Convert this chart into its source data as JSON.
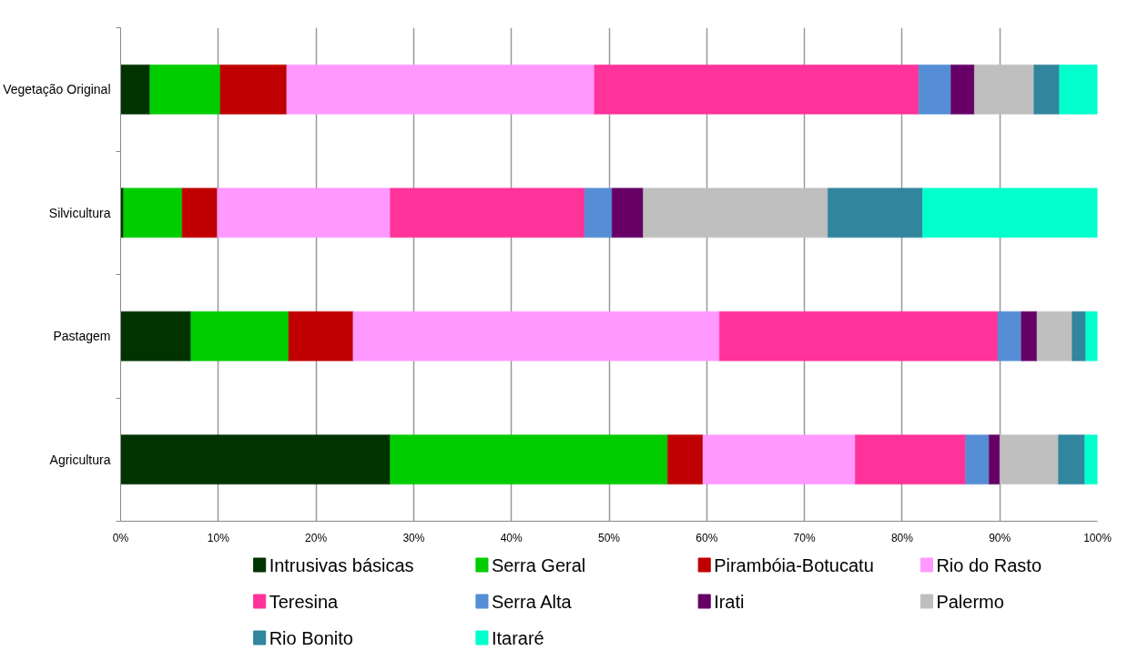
{
  "chart_data": {
    "type": "bar",
    "orientation": "horizontal",
    "stacked": true,
    "categories": [
      "Vegetação Original",
      "Silvicultura",
      "Pastagem",
      "Agricultura"
    ],
    "xlim": [
      0,
      100
    ],
    "xticks": [
      {
        "value": 0,
        "label": "0%"
      },
      {
        "value": 10,
        "label": "10%"
      },
      {
        "value": 20,
        "label": "20%"
      },
      {
        "value": 30,
        "label": "30%"
      },
      {
        "value": 40,
        "label": "40%"
      },
      {
        "value": 50,
        "label": "50%"
      },
      {
        "value": 60,
        "label": "60%"
      },
      {
        "value": 70,
        "label": "70%"
      },
      {
        "value": 80,
        "label": "80%"
      },
      {
        "value": 90,
        "label": "90%"
      },
      {
        "value": 100,
        "label": "100%"
      }
    ],
    "grid": "x",
    "legend": "bottom",
    "series": [
      {
        "name": "Intrusivas básicas",
        "color": "#003300",
        "values": [
          3.0,
          0.3,
          7.2,
          27.6
        ]
      },
      {
        "name": "Serra Geral",
        "color": "#00cc00",
        "values": [
          7.2,
          6.0,
          10.0,
          28.4
        ]
      },
      {
        "name": "Pirambóia-Botucatu",
        "color": "#c00000",
        "values": [
          6.8,
          3.6,
          6.6,
          3.6
        ]
      },
      {
        "name": "Rio do Rasto",
        "color": "#ff99ff",
        "values": [
          31.5,
          17.7,
          37.5,
          15.6
        ]
      },
      {
        "name": "Teresina",
        "color": "#ff3399",
        "values": [
          33.2,
          19.9,
          28.5,
          11.3
        ]
      },
      {
        "name": "Serra Alta",
        "color": "#558ed5",
        "values": [
          3.3,
          2.8,
          2.4,
          2.4
        ]
      },
      {
        "name": "Irati",
        "color": "#660066",
        "values": [
          2.4,
          3.2,
          1.6,
          1.1
        ]
      },
      {
        "name": "Palermo",
        "color": "#bfbfbf",
        "values": [
          6.1,
          18.9,
          3.6,
          6.0
        ]
      },
      {
        "name": "Rio Bonito",
        "color": "#31859c",
        "values": [
          2.6,
          9.7,
          1.4,
          2.7
        ]
      },
      {
        "name": "Itararé",
        "color": "#00ffcc",
        "values": [
          3.9,
          17.9,
          1.2,
          1.3
        ]
      }
    ]
  }
}
